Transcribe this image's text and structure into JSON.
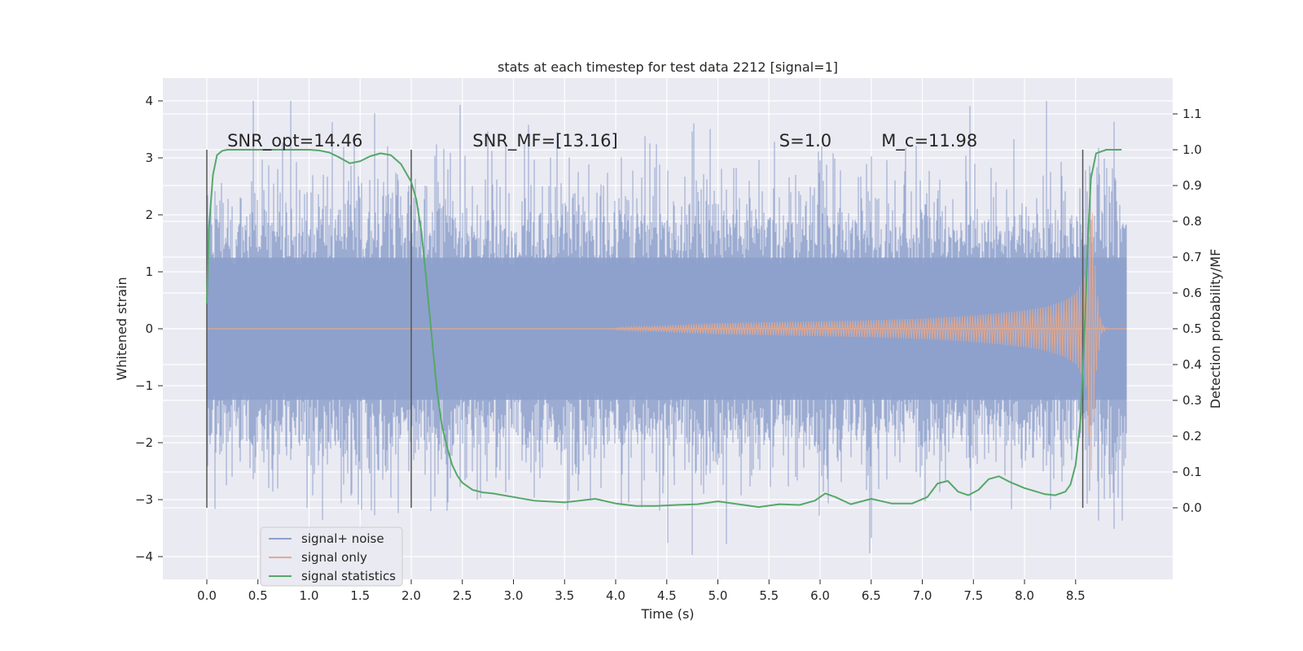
{
  "chart_data": {
    "type": "line",
    "title": "stats at each timestep for test data 2212 [signal=1]",
    "xlabel": "Time (s)",
    "ylabel": "Whitened strain",
    "y2label": "Detection probability/MF",
    "xlim": [
      -0.43,
      9.45
    ],
    "ylim": [
      -4.4,
      4.4
    ],
    "y2lim": [
      -0.2,
      1.2
    ],
    "xticks": [
      0.0,
      0.5,
      1.0,
      1.5,
      2.0,
      2.5,
      3.0,
      3.5,
      4.0,
      4.5,
      5.0,
      5.5,
      6.0,
      6.5,
      7.0,
      7.5,
      8.0,
      8.5
    ],
    "xtick_labels": [
      "0.0",
      "0.5",
      "1.0",
      "1.5",
      "2.0",
      "2.5",
      "3.0",
      "3.5",
      "4.0",
      "4.5",
      "5.0",
      "5.5",
      "6.0",
      "6.5",
      "7.0",
      "7.5",
      "8.0",
      "8.5"
    ],
    "yticks": [
      4,
      3,
      2,
      1,
      0,
      -1,
      -2,
      -3,
      -4
    ],
    "ytick_labels": [
      "4",
      "3",
      "2",
      "1",
      "0",
      "−1",
      "−2",
      "−3",
      "−4"
    ],
    "y2ticks": [
      1.1,
      1.0,
      0.9,
      0.8,
      0.7,
      0.6,
      0.5,
      0.4,
      0.3,
      0.2,
      0.1,
      0.0
    ],
    "y2tick_labels": [
      "1.1",
      "1.0",
      "0.9",
      "0.8",
      "0.7",
      "0.6",
      "0.5",
      "0.4",
      "0.3",
      "0.2",
      "0.1",
      "0.0"
    ],
    "grid": true,
    "legend_position": "lower-left",
    "series": [
      {
        "name": "signal+ noise",
        "color": "#8da0cb",
        "kind": "noise-band",
        "x_range": [
          0.0,
          9.0
        ],
        "typical_amplitude": 1.3,
        "peak_amplitude": 4.0
      },
      {
        "name": "signal only",
        "color": "#e5a98c",
        "kind": "chirp",
        "x_start": 4.0,
        "merger_time": 8.65,
        "peak_amplitude": 2.6,
        "envelope": {
          "x": [
            4.0,
            5.0,
            6.0,
            6.5,
            7.0,
            7.5,
            8.0,
            8.2,
            8.4,
            8.5,
            8.6,
            8.65,
            8.7,
            8.75,
            8.8
          ],
          "amp": [
            0.02,
            0.1,
            0.13,
            0.15,
            0.18,
            0.23,
            0.32,
            0.38,
            0.5,
            0.62,
            0.95,
            2.6,
            0.8,
            0.1,
            0.02
          ]
        }
      },
      {
        "name": "signal statistics",
        "color": "#55a868",
        "axis": "right",
        "x": [
          0.0,
          0.02,
          0.06,
          0.1,
          0.15,
          0.2,
          0.3,
          0.5,
          0.8,
          1.0,
          1.1,
          1.2,
          1.3,
          1.4,
          1.5,
          1.6,
          1.7,
          1.8,
          1.9,
          2.0,
          2.05,
          2.1,
          2.15,
          2.2,
          2.25,
          2.3,
          2.35,
          2.4,
          2.45,
          2.5,
          2.6,
          2.7,
          2.8,
          3.0,
          3.2,
          3.5,
          3.8,
          4.0,
          4.2,
          4.4,
          4.6,
          4.8,
          5.0,
          5.2,
          5.4,
          5.6,
          5.8,
          5.95,
          6.05,
          6.15,
          6.3,
          6.5,
          6.7,
          6.9,
          7.05,
          7.15,
          7.25,
          7.35,
          7.45,
          7.55,
          7.65,
          7.75,
          7.85,
          8.0,
          8.2,
          8.3,
          8.4,
          8.45,
          8.5,
          8.55,
          8.6,
          8.62,
          8.65,
          8.7,
          8.8,
          8.9,
          8.95
        ],
        "y": [
          0.57,
          0.78,
          0.93,
          0.985,
          0.997,
          1.0,
          1.0,
          1.0,
          1.0,
          1.0,
          0.998,
          0.992,
          0.978,
          0.962,
          0.968,
          0.982,
          0.99,
          0.985,
          0.96,
          0.91,
          0.86,
          0.77,
          0.63,
          0.48,
          0.33,
          0.23,
          0.17,
          0.12,
          0.09,
          0.07,
          0.05,
          0.043,
          0.04,
          0.03,
          0.02,
          0.015,
          0.025,
          0.012,
          0.005,
          0.005,
          0.008,
          0.01,
          0.018,
          0.01,
          0.002,
          0.01,
          0.008,
          0.02,
          0.04,
          0.03,
          0.01,
          0.025,
          0.012,
          0.012,
          0.03,
          0.068,
          0.075,
          0.045,
          0.035,
          0.05,
          0.08,
          0.088,
          0.073,
          0.055,
          0.038,
          0.035,
          0.045,
          0.065,
          0.12,
          0.25,
          0.58,
          0.75,
          0.92,
          0.99,
          1.0,
          1.0,
          1.0
        ]
      }
    ],
    "vertical_lines": [
      0.0,
      2.0,
      8.57
    ],
    "annotations": [
      {
        "text": "SNR_opt=14.46",
        "x": 0.2
      },
      {
        "text": "SNR_MF=[13.16]",
        "x": 2.6
      },
      {
        "text": "S=1.0",
        "x": 5.6
      },
      {
        "text": "M_c=11.98",
        "x": 6.6
      }
    ],
    "annotation_y": 3.2
  }
}
